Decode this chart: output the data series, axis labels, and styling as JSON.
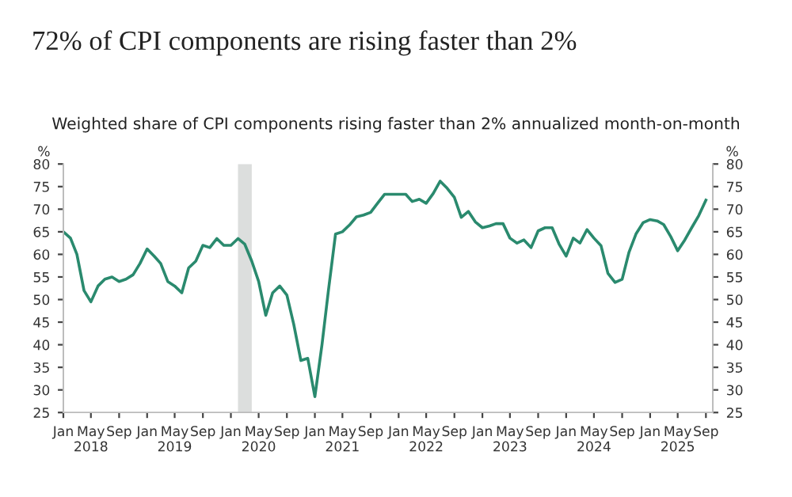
{
  "chart_data": {
    "type": "line",
    "title": "72% of CPI components are rising faster than 2%",
    "subtitle": "Weighted share of CPI components rising faster than 2% annualized month-on-month",
    "ylabel": "%",
    "y2label": "%",
    "x": [
      "2018-01",
      "2018-02",
      "2018-03",
      "2018-04",
      "2018-05",
      "2018-06",
      "2018-07",
      "2018-08",
      "2018-09",
      "2018-10",
      "2018-11",
      "2018-12",
      "2019-01",
      "2019-02",
      "2019-03",
      "2019-04",
      "2019-05",
      "2019-06",
      "2019-07",
      "2019-08",
      "2019-09",
      "2019-10",
      "2019-11",
      "2019-12",
      "2020-01",
      "2020-02",
      "2020-03",
      "2020-04",
      "2020-05",
      "2020-06",
      "2020-07",
      "2020-08",
      "2020-09",
      "2020-10",
      "2020-11",
      "2020-12",
      "2021-01",
      "2021-02",
      "2021-03",
      "2021-04",
      "2021-05",
      "2021-06",
      "2021-07",
      "2021-08",
      "2021-09",
      "2021-10",
      "2021-11",
      "2021-12",
      "2022-01",
      "2022-02",
      "2022-03",
      "2022-04",
      "2022-05",
      "2022-06",
      "2022-07",
      "2022-08",
      "2022-09",
      "2022-10",
      "2022-11",
      "2022-12",
      "2023-01",
      "2023-02",
      "2023-03",
      "2023-04",
      "2023-05",
      "2023-06",
      "2023-07",
      "2023-08",
      "2023-09",
      "2023-10",
      "2023-11",
      "2023-12",
      "2024-01",
      "2024-02",
      "2024-03",
      "2024-04",
      "2024-05",
      "2024-06",
      "2024-07",
      "2024-08",
      "2024-09",
      "2024-10",
      "2024-11",
      "2024-12",
      "2025-01",
      "2025-02",
      "2025-03",
      "2025-04",
      "2025-05",
      "2025-06",
      "2025-07",
      "2025-08",
      "2025-09"
    ],
    "series": [
      {
        "color": "#2a8a6e",
        "values": [
          65,
          63.6,
          60,
          52,
          49.5,
          53,
          54.5,
          55,
          54,
          54.5,
          55.5,
          58,
          61.2,
          59.6,
          58,
          54,
          53,
          51.5,
          57,
          58.5,
          62,
          61.5,
          63.5,
          62,
          62,
          63.5,
          62.3,
          58.5,
          54,
          46.5,
          51.5,
          53,
          51,
          44.5,
          36.5,
          37,
          28.5,
          40,
          52,
          64.5,
          65,
          66.5,
          68.3,
          68.7,
          69.3,
          71.3,
          73.3,
          73.3,
          73.3,
          73.3,
          71.7,
          72.2,
          71.3,
          73.5,
          76.2,
          74.6,
          72.6,
          68.2,
          69.5,
          67.2,
          65.9,
          66.3,
          66.8,
          66.8,
          63.6,
          62.5,
          63.2,
          61.5,
          65.2,
          65.9,
          65.9,
          62.3,
          59.6,
          63.6,
          62.5,
          65.5,
          63.6,
          61.9,
          55.8,
          53.8,
          54.5,
          60.5,
          64.6,
          67,
          67.7,
          67.4,
          66.6,
          63.9,
          60.8,
          63.2,
          65.9,
          68.6,
          72
        ]
      }
    ],
    "xlim": [
      "2018-01",
      "2025-10"
    ],
    "xticks": [
      {
        "value": "2018-01",
        "label": "Jan"
      },
      {
        "value": "2018-05",
        "label": "May\n2018"
      },
      {
        "value": "2018-09",
        "label": "Sep"
      },
      {
        "value": "2019-01",
        "label": "Jan"
      },
      {
        "value": "2019-05",
        "label": "May\n2019"
      },
      {
        "value": "2019-09",
        "label": "Sep"
      },
      {
        "value": "2020-01",
        "label": "Jan"
      },
      {
        "value": "2020-05",
        "label": "May\n2020"
      },
      {
        "value": "2020-09",
        "label": "Sep"
      },
      {
        "value": "2021-01",
        "label": "Jan"
      },
      {
        "value": "2021-05",
        "label": "May\n2021"
      },
      {
        "value": "2021-09",
        "label": "Sep"
      },
      {
        "value": "2022-01",
        "label": "Jan"
      },
      {
        "value": "2022-05",
        "label": "May\n2022"
      },
      {
        "value": "2022-09",
        "label": "Sep"
      },
      {
        "value": "2023-01",
        "label": "Jan"
      },
      {
        "value": "2023-05",
        "label": "May\n2023"
      },
      {
        "value": "2023-09",
        "label": "Sep"
      },
      {
        "value": "2024-01",
        "label": "Jan"
      },
      {
        "value": "2024-05",
        "label": "May\n2024"
      },
      {
        "value": "2024-09",
        "label": "Sep"
      },
      {
        "value": "2025-01",
        "label": "Jan"
      },
      {
        "value": "2025-05",
        "label": "May\n2025"
      },
      {
        "value": "2025-09",
        "label": "Sep"
      }
    ],
    "ylim": [
      25,
      80
    ],
    "yticks": [
      25,
      30,
      35,
      40,
      45,
      50,
      55,
      60,
      65,
      70,
      75,
      80
    ],
    "y2lim": [
      25,
      80
    ],
    "y2ticks": [
      25,
      30,
      35,
      40,
      45,
      50,
      55,
      60,
      65,
      70,
      75,
      80
    ],
    "bands": [
      {
        "axis": "x",
        "from": "2020-02",
        "to": "2020-04",
        "color": "#dcdedd"
      }
    ],
    "grid": false,
    "legend": false,
    "marker": "none",
    "line_style": "solid"
  }
}
